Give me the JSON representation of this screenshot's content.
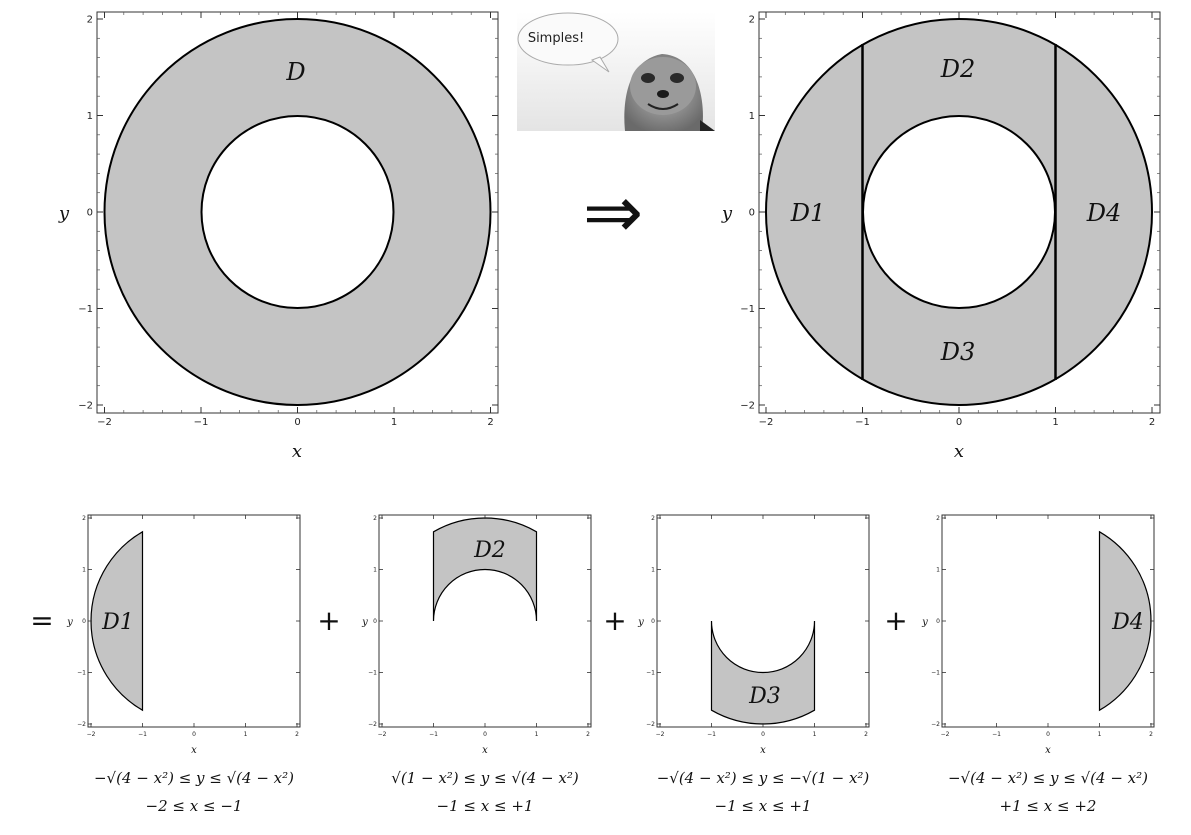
{
  "top_left": {
    "region_label": "D",
    "xlabel": "x",
    "ylabel": "y",
    "ticks": [
      "−2",
      "−1",
      "0",
      "1",
      "2"
    ]
  },
  "top_right": {
    "region_labels": [
      "D1",
      "D2",
      "D3",
      "D4"
    ],
    "xlabel": "x",
    "ylabel": "y",
    "ticks": [
      "−2",
      "−1",
      "0",
      "1",
      "2"
    ]
  },
  "meerkat": {
    "speech": "Simples!"
  },
  "implies_symbol": "⇒",
  "bottom_panels": [
    {
      "prefix": "=",
      "region_label": "D1",
      "y_condition": "−√(4 − x²) ≤ y ≤ √(4 − x²)",
      "x_condition": "−2 ≤ x ≤ −1"
    },
    {
      "prefix": "+",
      "region_label": "D2",
      "y_condition": "√(1 − x²) ≤ y ≤ √(4 − x²)",
      "x_condition": "−1 ≤ x ≤ +1"
    },
    {
      "prefix": "+",
      "region_label": "D3",
      "y_condition": "−√(4 − x²) ≤ y ≤ −√(1 − x²)",
      "x_condition": "−1 ≤ x ≤ +1"
    },
    {
      "prefix": "+",
      "region_label": "D4",
      "y_condition": "−√(4 − x²) ≤ y ≤ √(4 − x²)",
      "x_condition": "+1 ≤ x ≤ +2"
    }
  ],
  "bottom_axes": {
    "xlabel": "x",
    "ylabel": "y",
    "ticks": [
      "−2",
      "−1",
      "0",
      "1",
      "2"
    ]
  },
  "colors": {
    "fill": "#c4c4c4",
    "stroke": "#000000"
  }
}
